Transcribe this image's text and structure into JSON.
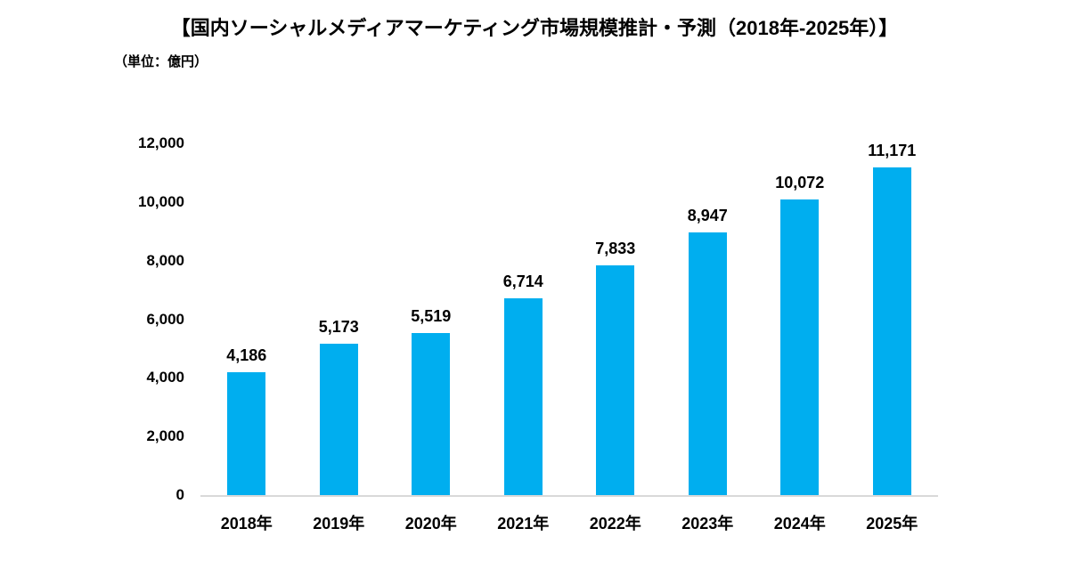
{
  "page": {
    "background": "#ffffff"
  },
  "chart_data": {
    "type": "bar",
    "title": "【国内ソーシャルメディアマーケティング市場規模推計・予測（2018年-2025年）】",
    "unit_label": "（単位：億円）",
    "categories": [
      "2018年",
      "2019年",
      "2020年",
      "2021年",
      "2022年",
      "2023年",
      "2024年",
      "2025年"
    ],
    "values": [
      4186,
      5173,
      5519,
      6714,
      7833,
      8947,
      10072,
      11171
    ],
    "value_labels": [
      "4,186",
      "5,173",
      "5,519",
      "6,714",
      "7,833",
      "8,947",
      "10,072",
      "11,171"
    ],
    "xlabel": "",
    "ylabel": "",
    "ylim": [
      0,
      12000
    ],
    "ytick_step": 2000,
    "ytick_labels": [
      "0",
      "2,000",
      "4,000",
      "6,000",
      "8,000",
      "10,000",
      "12,000"
    ],
    "grid": false,
    "legend": "none",
    "bar_color": "#00AEEF",
    "axis_line_color": "#D9D9D9",
    "text_color": "#000000"
  }
}
